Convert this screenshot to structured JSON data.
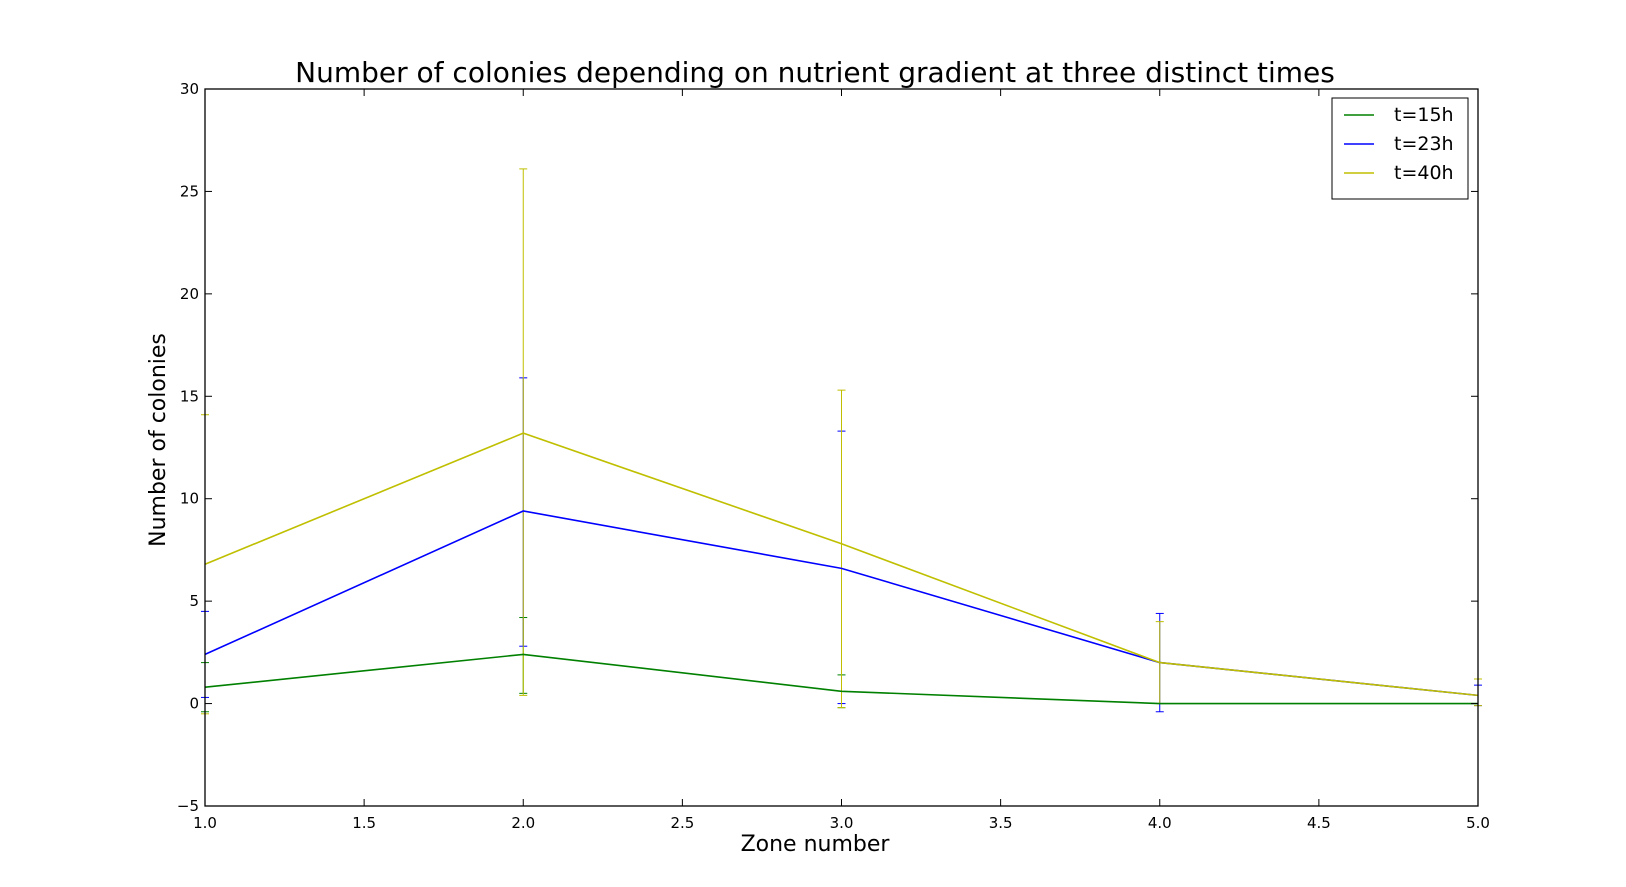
{
  "chart_data": {
    "type": "line",
    "title": "Number of colonies depending on nutrient gradient at three distinct times",
    "xlabel": "Zone number",
    "ylabel": "Number of colonies",
    "xlim": [
      1.0,
      5.0
    ],
    "ylim": [
      -5,
      30
    ],
    "x_ticks": [
      "1.0",
      "1.5",
      "2.0",
      "2.5",
      "3.0",
      "3.5",
      "4.0",
      "4.5",
      "5.0"
    ],
    "y_ticks": [
      "−5",
      "0",
      "5",
      "10",
      "15",
      "20",
      "25",
      "30"
    ],
    "grid": false,
    "legend_position": "top-right",
    "x": [
      1,
      2,
      3,
      4,
      5
    ],
    "series": [
      {
        "name": "t=15h",
        "color": "#008000",
        "values": [
          0.8,
          2.4,
          0.6,
          0.0,
          0.0
        ],
        "err_low": [
          -0.4,
          0.5,
          -0.2,
          0.0,
          0.0
        ],
        "err_high": [
          2.0,
          4.2,
          1.4,
          0.0,
          0.0
        ]
      },
      {
        "name": "t=23h",
        "color": "#0000ff",
        "values": [
          2.4,
          9.4,
          6.6,
          2.0,
          0.4
        ],
        "err_low": [
          0.3,
          2.8,
          0.0,
          -0.4,
          -0.1
        ],
        "err_high": [
          4.5,
          15.9,
          13.3,
          4.4,
          0.9
        ]
      },
      {
        "name": "t=40h",
        "color": "#bfbf00",
        "values": [
          6.8,
          13.2,
          7.8,
          2.0,
          0.4
        ],
        "err_low": [
          -0.5,
          0.4,
          -0.2,
          0.0,
          -0.1
        ],
        "err_high": [
          14.1,
          26.1,
          15.3,
          4.0,
          1.2
        ]
      }
    ]
  }
}
